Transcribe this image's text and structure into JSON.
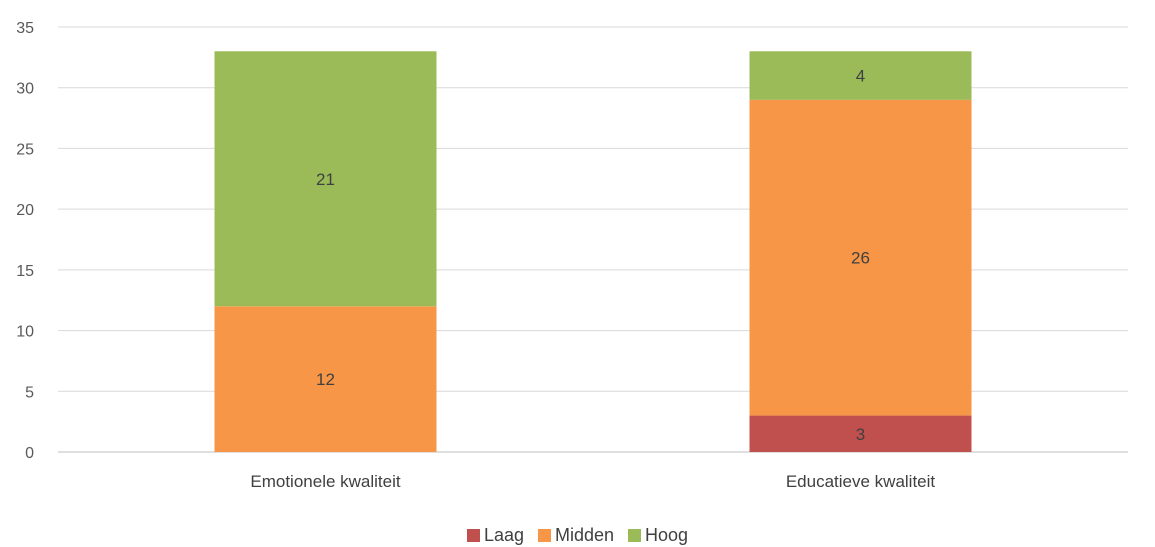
{
  "chart_data": {
    "type": "bar",
    "stacked": true,
    "categories": [
      "Emotionele kwaliteit",
      "Educatieve kwaliteit"
    ],
    "series": [
      {
        "name": "Laag",
        "color": "#c0504d",
        "values": [
          0,
          3
        ]
      },
      {
        "name": "Midden",
        "color": "#f79646",
        "values": [
          12,
          26
        ]
      },
      {
        "name": "Hoog",
        "color": "#9bbb59",
        "values": [
          21,
          4
        ]
      }
    ],
    "ylim": [
      0,
      35
    ],
    "yticks": [
      0,
      5,
      10,
      15,
      20,
      25,
      30,
      35
    ],
    "grid": true,
    "legend_position": "bottom",
    "title": "",
    "xlabel": "",
    "ylabel": ""
  }
}
